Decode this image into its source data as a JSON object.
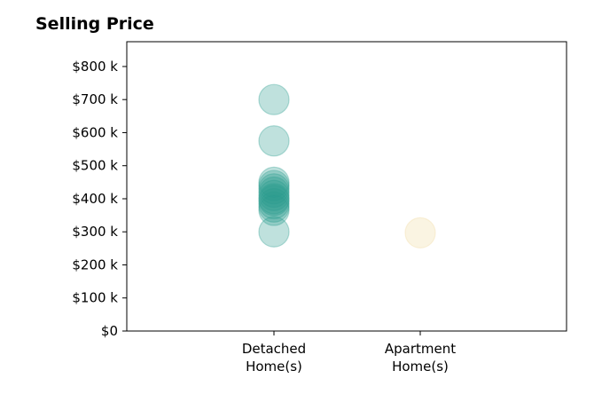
{
  "chart_data": {
    "type": "scatter",
    "title": "Selling Price",
    "xlabel": "",
    "ylabel": "",
    "categories": [
      [
        "Detached",
        "Home(s)"
      ],
      [
        "Apartment",
        "Home(s)"
      ]
    ],
    "ylim": [
      0,
      875
    ],
    "yticks": [
      0,
      100,
      200,
      300,
      400,
      500,
      600,
      700,
      800
    ],
    "ytick_labels": [
      "$0",
      "$100 k",
      "$200 k",
      "$300 k",
      "$400 k",
      "$500 k",
      "$600 k",
      "$700 k",
      "$800 k"
    ],
    "grid": false,
    "series": [
      {
        "category_index": 0,
        "color": "#2a9d8f",
        "values": [
          700,
          575,
          450,
          440,
          430,
          420,
          410,
          400,
          395,
          385,
          375,
          365,
          300
        ]
      },
      {
        "category_index": 1,
        "color": "#f0d9a0",
        "values": [
          297
        ]
      }
    ]
  }
}
